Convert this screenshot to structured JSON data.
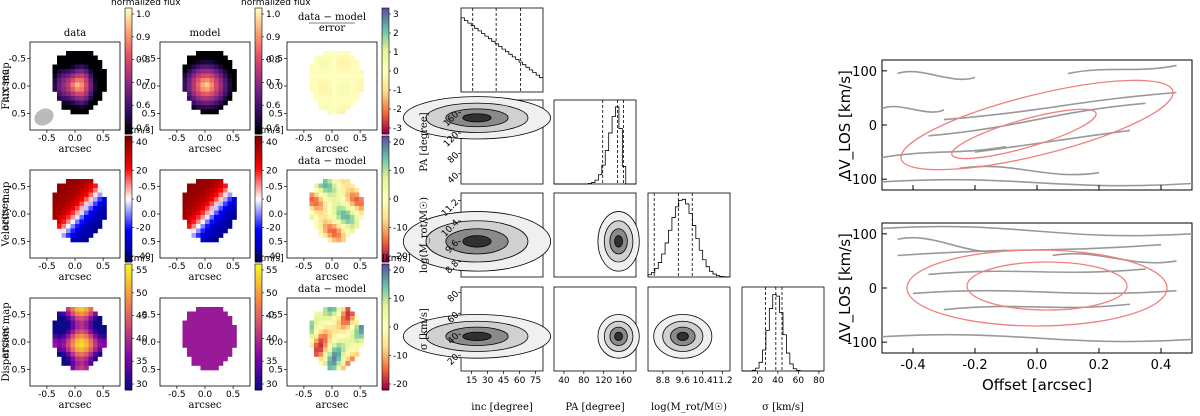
{
  "maps": {
    "col_titles": [
      "data",
      "model",
      "data − model"
    ],
    "row_labels": [
      "Flux map",
      "Velocity map",
      "Dispersion map"
    ],
    "xlabel": "arcsec",
    "ylabel": "arcsec",
    "ticks": [
      "-0.5",
      "0.0",
      "0.5"
    ],
    "residual_flux_num": "data − model",
    "residual_flux_den": "error",
    "colorbars": {
      "flux": {
        "label": "normalized flux",
        "ticks": [
          "1.0",
          "0.9",
          "0.8",
          "0.7",
          "0.6",
          "0.5"
        ],
        "range": [
          0.45,
          1.05
        ],
        "colors": [
          "#000004",
          "#3b0f70",
          "#8c2981",
          "#de4968",
          "#fe9f6d",
          "#fcfdbf"
        ]
      },
      "residual": {
        "label": "",
        "ticks": [
          "3",
          "2",
          "1",
          "0",
          "-1",
          "-2",
          "-3"
        ],
        "range": [
          -3,
          3
        ],
        "colors": [
          "#9e0142",
          "#f46d43",
          "#fee08b",
          "#ffffbf",
          "#e6f598",
          "#66c2a5",
          "#5e4fa2"
        ]
      },
      "velocity": {
        "label": "[km/s]",
        "ticks": [
          "40",
          "20",
          "0",
          "-20",
          "-40"
        ],
        "range": [
          -48,
          48
        ],
        "colors": [
          "#00007f",
          "#0000ff",
          "#ffffff",
          "#ff0000",
          "#7f0000"
        ]
      },
      "vel_resid": {
        "label": "",
        "ticks": [
          "20",
          "10",
          "0",
          "-10",
          "-20"
        ],
        "range": [
          -28,
          28
        ],
        "colors": [
          "#9e0142",
          "#f46d43",
          "#fee08b",
          "#ffffbf",
          "#e6f598",
          "#66c2a5",
          "#5e4fa2"
        ]
      },
      "dispersion": {
        "label": "[km/s]",
        "ticks": [
          "55",
          "50",
          "45",
          "40",
          "35",
          "30"
        ],
        "range": [
          28,
          58
        ],
        "colors": [
          "#0d0887",
          "#7e03a8",
          "#cc4778",
          "#f89540",
          "#f0f921"
        ]
      },
      "disp_resid": {
        "label": "[km/s]",
        "ticks": [
          "20",
          "10",
          "0",
          "-10",
          "-20"
        ],
        "range": [
          -28,
          28
        ],
        "colors": [
          "#9e0142",
          "#f46d43",
          "#fee08b",
          "#ffffbf",
          "#e6f598",
          "#66c2a5",
          "#5e4fa2"
        ]
      }
    }
  },
  "corner": {
    "params": [
      {
        "label": "inc [degree]",
        "range": [
          5,
          82
        ],
        "ticks": [
          15,
          30,
          45,
          60,
          75
        ],
        "quantiles": [
          16,
          38,
          61
        ]
      },
      {
        "label": "PA [degree]",
        "range": [
          20,
          185
        ],
        "ticks": [
          40,
          80,
          120,
          160
        ],
        "quantiles": [
          118,
          148,
          160
        ]
      },
      {
        "label": "log(M_rot/M☉)",
        "range": [
          8.2,
          11.5
        ],
        "ticks": [
          8.8,
          9.6,
          10.4,
          11.2
        ],
        "quantiles": [
          8.45,
          9.42,
          9.98
        ]
      },
      {
        "label": "σ [km/s]",
        "range": [
          5,
          85
        ],
        "ticks": [
          20,
          40,
          60,
          80
        ],
        "quantiles": [
          28,
          38,
          44
        ]
      }
    ],
    "peaks": {
      "inc": 20,
      "PA": 150,
      "logM": 9.6,
      "sigma": 38
    }
  },
  "pv": {
    "ylabel": "ΔV_LOS [km/s]",
    "xlabel": "Offset [arcsec]",
    "xlim": [
      -0.5,
      0.5
    ],
    "ylim": [
      -120,
      120
    ],
    "xticks": [
      "-0.4",
      "-0.2",
      "0.0",
      "0.2",
      "0.4"
    ],
    "yticks": [
      "100",
      "0",
      "-100"
    ],
    "data_color": "#999999",
    "model_color": "#f08080"
  }
}
